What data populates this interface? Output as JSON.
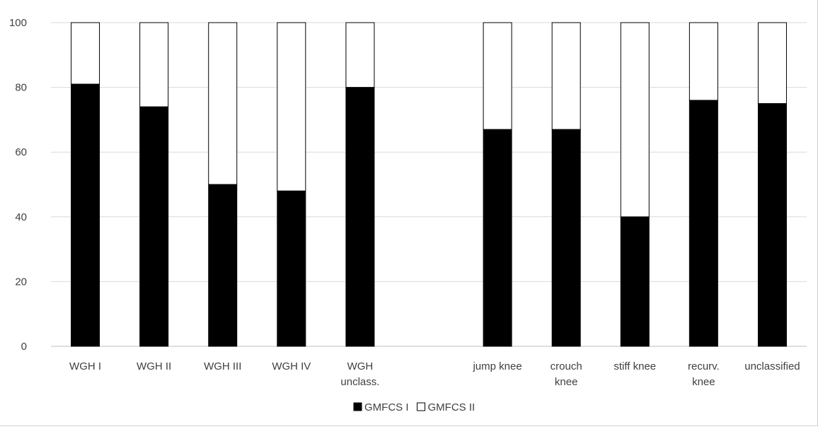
{
  "chart_data": {
    "type": "bar",
    "stacked": true,
    "title": "",
    "xlabel": "",
    "ylabel": "",
    "ylim": [
      0,
      100
    ],
    "yticks": [
      0,
      20,
      40,
      60,
      80,
      100
    ],
    "grid": true,
    "legend_position": "bottom",
    "categories": [
      [
        "WGH I"
      ],
      [
        "WGH II"
      ],
      [
        "WGH III"
      ],
      [
        "WGH IV"
      ],
      [
        "WGH",
        "unclass."
      ],
      [],
      [
        "jump knee"
      ],
      [
        "crouch",
        "knee"
      ],
      [
        "stiff knee"
      ],
      [
        "recurv.",
        "knee"
      ],
      [
        "unclassified"
      ]
    ],
    "series": [
      {
        "name": "GMFCS I",
        "color": "#000000",
        "values": [
          81,
          74,
          50,
          48,
          80,
          null,
          67,
          67,
          40,
          76,
          75
        ]
      },
      {
        "name": "GMFCS II",
        "color": "#ffffff",
        "values": [
          19,
          26,
          50,
          52,
          20,
          null,
          33,
          33,
          60,
          24,
          25
        ]
      }
    ]
  }
}
